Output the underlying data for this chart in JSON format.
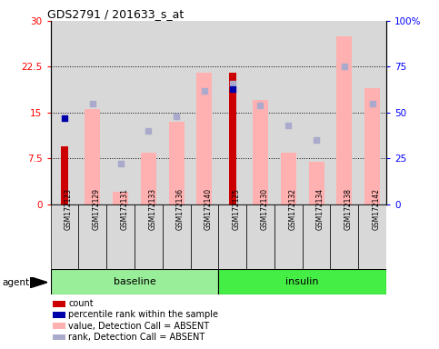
{
  "title": "GDS2791 / 201633_s_at",
  "samples": [
    "GSM172123",
    "GSM172129",
    "GSM172131",
    "GSM172133",
    "GSM172136",
    "GSM172140",
    "GSM172125",
    "GSM172130",
    "GSM172132",
    "GSM172134",
    "GSM172138",
    "GSM172142"
  ],
  "groups": [
    {
      "label": "baseline",
      "start": 0,
      "end": 6,
      "color": "#99ee99"
    },
    {
      "label": "insulin",
      "start": 6,
      "end": 12,
      "color": "#44ee44"
    }
  ],
  "count_values": [
    9.5,
    0,
    0,
    0,
    0,
    0,
    21.5,
    0,
    0,
    0,
    0,
    0
  ],
  "rank_values_pct": [
    47,
    0,
    0,
    0,
    0,
    0,
    63,
    0,
    0,
    0,
    0,
    0
  ],
  "value_absent": [
    0,
    15.5,
    2.0,
    8.5,
    13.5,
    21.5,
    0,
    17.0,
    8.5,
    7.0,
    27.5,
    19.0
  ],
  "rank_absent_pct": [
    0,
    55,
    22,
    40,
    48,
    62,
    66,
    54,
    43,
    35,
    75,
    55
  ],
  "ylim_left": [
    0,
    30
  ],
  "ylim_right": [
    0,
    100
  ],
  "yticks_left": [
    0,
    7.5,
    15,
    22.5,
    30
  ],
  "yticks_right": [
    0,
    25,
    50,
    75,
    100
  ],
  "ytick_labels_left": [
    "0",
    "7.5",
    "15",
    "22.5",
    "30"
  ],
  "ytick_labels_right": [
    "0",
    "25",
    "50",
    "75",
    "100%"
  ],
  "color_count": "#cc0000",
  "color_rank": "#0000aa",
  "color_value_absent": "#ffb0b0",
  "color_rank_absent": "#aaaacc",
  "legend_items": [
    {
      "label": "count",
      "color": "#cc0000"
    },
    {
      "label": "percentile rank within the sample",
      "color": "#0000aa"
    },
    {
      "label": "value, Detection Call = ABSENT",
      "color": "#ffb0b0"
    },
    {
      "label": "rank, Detection Call = ABSENT",
      "color": "#aaaacc"
    }
  ]
}
